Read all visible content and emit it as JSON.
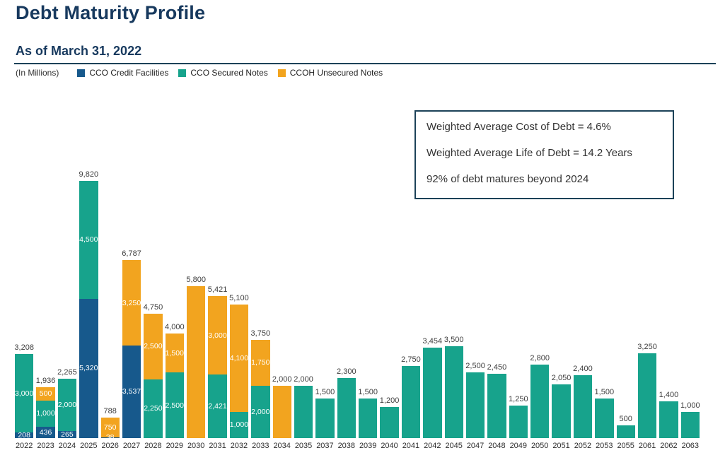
{
  "page": {
    "background": "#ffffff",
    "accent_navy": "#17395E"
  },
  "header": {
    "title": "Debt Maturity Profile",
    "subtitle": "As of March 31, 2022",
    "units_label": "(In Millions)"
  },
  "legend": {
    "items": [
      {
        "label": "CCO Credit Facilities",
        "color": "#17598C"
      },
      {
        "label": "CCO Secured Notes",
        "color": "#17A38C"
      },
      {
        "label": "CCOH Unsecured Notes",
        "color": "#F2A41F"
      }
    ]
  },
  "info_box": {
    "lines": [
      "Weighted Average Cost of Debt = 4.6%",
      "Weighted Average Life of Debt = 14.2 Years",
      "92% of debt matures beyond 2024"
    ]
  },
  "chart_data": {
    "type": "bar",
    "stacked": true,
    "title": "Debt Maturity Profile",
    "units": "In Millions",
    "ylim": [
      0,
      9820
    ],
    "grid": false,
    "legend_position": "top",
    "value_labels": "totals above bars; segment values inside stacked bars",
    "categories": [
      "2022",
      "2023",
      "2024",
      "2025",
      "2026",
      "2027",
      "2028",
      "2029",
      "2030",
      "2031",
      "2032",
      "2033",
      "2034",
      "2035",
      "2037",
      "2038",
      "2039",
      "2040",
      "2041",
      "2042",
      "2045",
      "2047",
      "2048",
      "2049",
      "2050",
      "2051",
      "2052",
      "2053",
      "2055",
      "2061",
      "2062",
      "2063"
    ],
    "series": [
      {
        "name": "CCO Credit Facilities",
        "color": "#17598C",
        "values": [
          208,
          436,
          265,
          5320,
          38,
          3537,
          0,
          0,
          0,
          0,
          0,
          0,
          0,
          0,
          0,
          0,
          0,
          0,
          0,
          0,
          0,
          0,
          0,
          0,
          0,
          0,
          0,
          0,
          0,
          0,
          0,
          0
        ]
      },
      {
        "name": "CCO Secured Notes",
        "color": "#17A38C",
        "values": [
          3000,
          1000,
          2000,
          4500,
          0,
          0,
          2250,
          2500,
          0,
          2421,
          1000,
          2000,
          0,
          2000,
          1500,
          2300,
          1500,
          1200,
          2750,
          3454,
          3500,
          2500,
          2450,
          1250,
          2800,
          2050,
          2400,
          1500,
          500,
          3250,
          1400,
          1000
        ]
      },
      {
        "name": "CCOH Unsecured Notes",
        "color": "#F2A41F",
        "values": [
          0,
          500,
          0,
          0,
          750,
          3250,
          2500,
          1500,
          5800,
          3000,
          4100,
          1750,
          2000,
          0,
          0,
          0,
          0,
          0,
          0,
          0,
          0,
          0,
          0,
          0,
          0,
          0,
          0,
          0,
          0,
          0,
          0,
          0
        ]
      }
    ],
    "totals": [
      3208,
      1936,
      2265,
      9820,
      788,
      6787,
      4750,
      4000,
      5800,
      5421,
      5100,
      3750,
      2000,
      2000,
      1500,
      2300,
      1500,
      1200,
      2750,
      3454,
      3500,
      2500,
      2450,
      1250,
      2800,
      2050,
      2400,
      1500,
      500,
      3250,
      1400,
      1000
    ]
  }
}
